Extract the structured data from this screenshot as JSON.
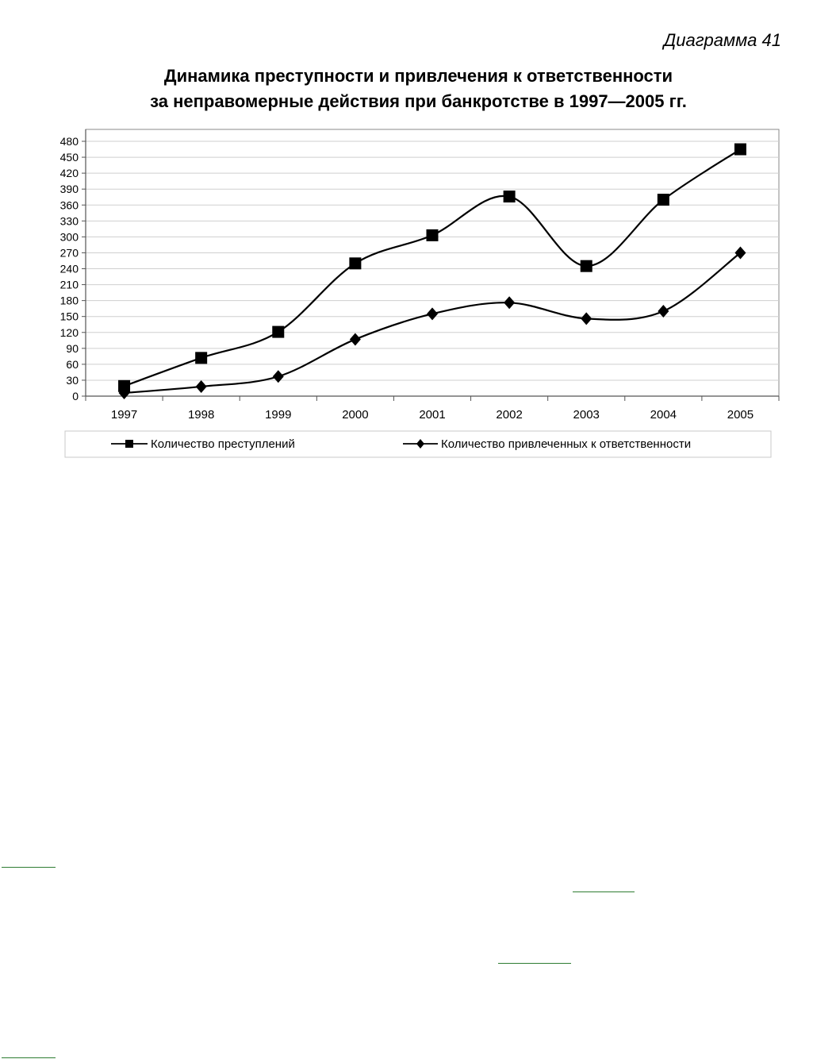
{
  "figure_label": "Диаграмма 41",
  "chart_data": {
    "type": "line",
    "title_line1": "Динамика преступности и привлечения к ответственности",
    "title_line2": "за неправомерные действия при банкротстве в 1997—2005 гг.",
    "xlabel": "",
    "ylabel": "",
    "categories": [
      "1997",
      "1998",
      "1999",
      "2000",
      "2001",
      "2002",
      "2003",
      "2004",
      "2005"
    ],
    "ylim": [
      0,
      480
    ],
    "yticks": [
      0,
      30,
      60,
      90,
      120,
      150,
      180,
      210,
      240,
      270,
      300,
      330,
      360,
      390,
      420,
      450,
      480
    ],
    "grid": true,
    "legend_position": "bottom",
    "series": [
      {
        "name": "Количество преступлений",
        "marker": "square",
        "values": [
          19,
          72,
          121,
          250,
          303,
          376,
          245,
          370,
          465
        ]
      },
      {
        "name": "Количество привлеченных к ответственности",
        "marker": "diamond",
        "values": [
          6,
          18,
          37,
          107,
          155,
          176,
          146,
          160,
          270
        ]
      }
    ]
  }
}
